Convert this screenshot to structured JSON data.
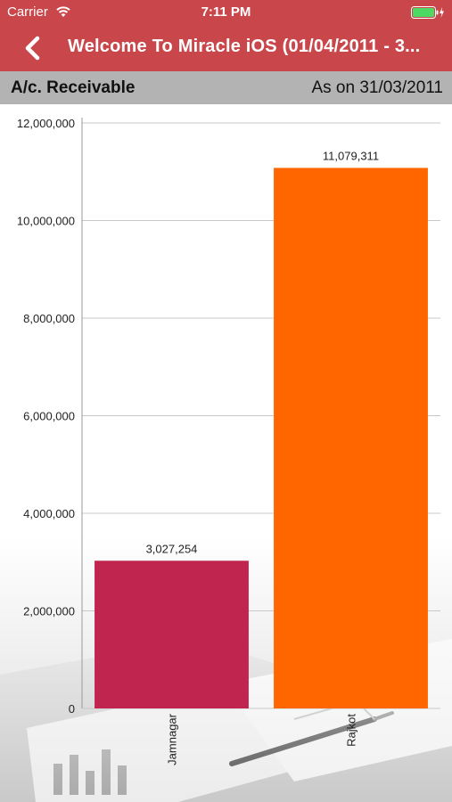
{
  "status_bar": {
    "carrier": "Carrier",
    "time": "7:11 PM",
    "icons": [
      "wifi-icon",
      "battery-icon",
      "charging-bolt-icon"
    ]
  },
  "nav": {
    "back_icon": "chevron-left-icon",
    "title": "Welcome To Miracle iOS (01/04/2011 - 3..."
  },
  "subheader": {
    "title": "A/c. Receivable",
    "date": "As on 31/03/2011"
  },
  "colors": {
    "nav_bar": "#c9464a",
    "subheader": "#b3b3b3",
    "bar_jamnagar": "#c0254f",
    "bar_rajkot": "#ff6600"
  },
  "chart_data": {
    "type": "bar",
    "categories": [
      "Jamnagar",
      "Rajkot"
    ],
    "values": [
      3027254,
      11079311
    ],
    "value_labels": [
      "3,027,254",
      "11,079,311"
    ],
    "ylim": [
      0,
      12000000
    ],
    "yticks": [
      0,
      2000000,
      4000000,
      6000000,
      8000000,
      10000000,
      12000000
    ],
    "ytick_labels": [
      "0",
      "2,000,000",
      "4,000,000",
      "6,000,000",
      "8,000,000",
      "10,000,000",
      "12,000,000"
    ],
    "bar_colors": [
      "#c0254f",
      "#ff6600"
    ],
    "grid": true,
    "title": "",
    "xlabel": "",
    "ylabel": ""
  }
}
